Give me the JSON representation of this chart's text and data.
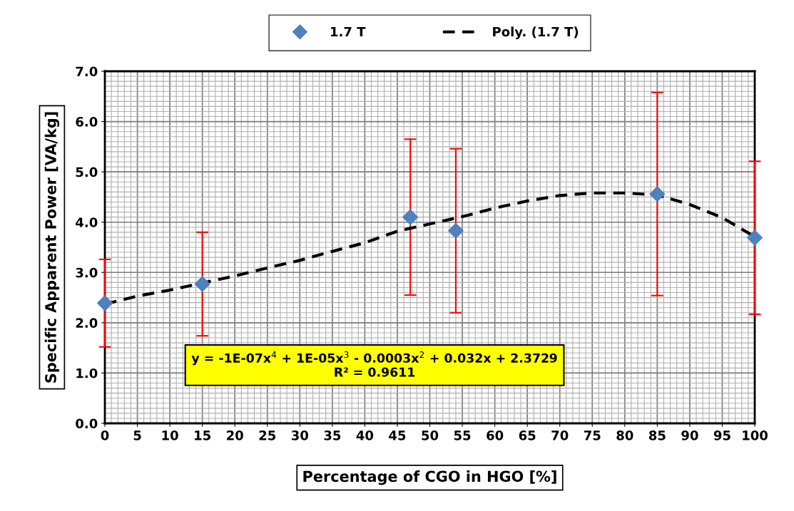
{
  "chart_data": {
    "type": "scatter",
    "xlabel": "Percentage of CGO in HGO [%]",
    "ylabel": "Specific Apparent Power [VA/kg]",
    "xlim": [
      0,
      100
    ],
    "xticks": [
      0,
      5,
      10,
      15,
      20,
      25,
      30,
      35,
      40,
      45,
      50,
      55,
      60,
      65,
      70,
      75,
      80,
      85,
      90,
      95,
      100
    ],
    "ylim": [
      0,
      7
    ],
    "yticks": [
      {
        "value": 0,
        "label": "0.0"
      },
      {
        "value": 1,
        "label": "1.0"
      },
      {
        "value": 2,
        "label": "2.0"
      },
      {
        "value": 3,
        "label": "3.0"
      },
      {
        "value": 4,
        "label": "4.0"
      },
      {
        "value": 5,
        "label": "5.0"
      },
      {
        "value": 6,
        "label": "6.0"
      },
      {
        "value": 7,
        "label": "7.0"
      }
    ],
    "grid": true,
    "legend": "top",
    "series": [
      {
        "name": "1.7 T",
        "marker": "diamond",
        "color": "#4f81bd",
        "x": [
          0,
          15,
          47,
          54,
          85,
          100
        ],
        "values": [
          2.39,
          2.77,
          4.1,
          3.83,
          4.56,
          3.69
        ],
        "errors": [
          0.87,
          1.03,
          1.55,
          1.63,
          2.02,
          1.52
        ]
      },
      {
        "name": "Poly. (1.7 T)",
        "type": "line",
        "line_style": "dashed",
        "color": "#000000",
        "x": [
          0,
          5,
          10,
          20,
          25,
          30,
          35,
          40,
          45,
          55,
          60,
          65,
          70,
          75,
          80,
          85,
          90,
          95,
          100
        ],
        "values": [
          2.37,
          2.53,
          2.65,
          2.93,
          3.09,
          3.24,
          3.42,
          3.59,
          3.82,
          4.11,
          4.28,
          4.42,
          4.53,
          4.58,
          4.58,
          4.54,
          4.35,
          4.09,
          3.71
        ]
      }
    ],
    "annotations": [
      "y = -1E-07x$^{4}$ + 1E-05x$^{3}$ - 0.0003x$^{2}$ + 0.032x + 2.3729\nR² = 0.9611"
    ]
  }
}
